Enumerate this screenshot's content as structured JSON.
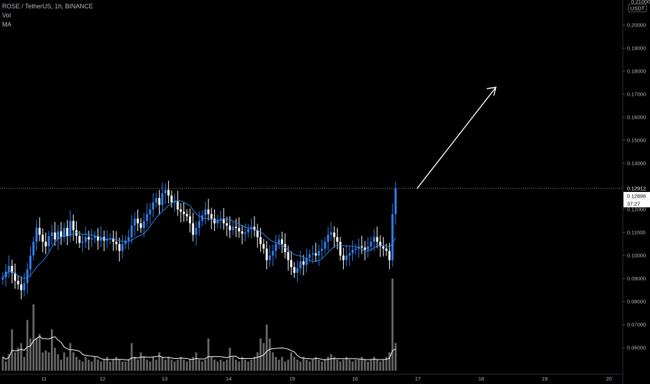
{
  "legend": {
    "symbol_line": "ROSE / TetherUS, 1h, BINANCE",
    "vol_label": "Vol",
    "ma_label": "MA"
  },
  "currency_label": "USDT",
  "colors": {
    "up": "#2f80ed",
    "down": "#ffffff",
    "volume": "#8a8a8a",
    "ma": "#2f80ed",
    "vol_ma": "#ffffff",
    "arrow": "#ffffff"
  },
  "chart_data": {
    "type": "candlestick",
    "symbol": "ROSE / TetherUS",
    "interval": "1h",
    "exchange": "BINANCE",
    "price_ticks": [
      0.21,
      0.2,
      0.19,
      0.18,
      0.17,
      0.16,
      0.15,
      0.14,
      0.13,
      0.12,
      0.11,
      0.1,
      0.09,
      0.08,
      0.07,
      0.06
    ],
    "price_tick_labels": [
      "0.21000",
      "0.20000",
      "0.19000",
      "0.18000",
      "0.17000",
      "0.16000",
      "0.15000",
      "0.14000",
      "0.13000",
      "0.12000",
      "0.11000",
      "0.10000",
      "0.09000",
      "0.08000",
      "0.07000",
      "0.06000"
    ],
    "x_tick_labels": [
      "11",
      "12",
      "13",
      "14",
      "15",
      "16",
      "17",
      "18",
      "19",
      "20"
    ],
    "last_price_label": "0.12912",
    "prev_price_label": "0.12896",
    "countdown_label": "37:27",
    "candles_close": [
      0.0905,
      0.093,
      0.0955,
      0.0925,
      0.089,
      0.0875,
      0.085,
      0.088,
      0.094,
      0.1,
      0.106,
      0.112,
      0.109,
      0.106,
      0.104,
      0.1085,
      0.11,
      0.107,
      0.1105,
      0.108,
      0.112,
      0.1085,
      0.115,
      0.111,
      0.1085,
      0.1055,
      0.106,
      0.108,
      0.107,
      0.1075,
      0.1085,
      0.1065,
      0.108,
      0.1065,
      0.107,
      0.1075,
      0.106,
      0.105,
      0.102,
      0.105,
      0.1065,
      0.108,
      0.113,
      0.116,
      0.114,
      0.112,
      0.115,
      0.118,
      0.12,
      0.123,
      0.125,
      0.122,
      0.127,
      0.1285,
      0.126,
      0.123,
      0.1235,
      0.12,
      0.119,
      0.118,
      0.117,
      0.114,
      0.109,
      0.112,
      0.115,
      0.1175,
      0.12,
      0.118,
      0.116,
      0.114,
      0.1155,
      0.116,
      0.114,
      0.113,
      0.111,
      0.1125,
      0.112,
      0.1105,
      0.1095,
      0.11,
      0.1115,
      0.1125,
      0.111,
      0.108,
      0.105,
      0.103,
      0.098,
      0.1,
      0.102,
      0.105,
      0.107,
      0.105,
      0.1015,
      0.098,
      0.095,
      0.0925,
      0.0945,
      0.0975,
      0.096,
      0.099,
      0.1005,
      0.101,
      0.1,
      0.102,
      0.103,
      0.106,
      0.109,
      0.11,
      0.108,
      0.106,
      0.1,
      0.098,
      0.1,
      0.101,
      0.1025,
      0.103,
      0.104,
      0.1035,
      0.1025,
      0.104,
      0.106,
      0.108,
      0.106,
      0.104,
      0.103,
      0.102,
      0.098,
      0.118,
      0.1291
    ],
    "volume_relative": [
      0.15,
      0.1,
      0.18,
      0.45,
      0.2,
      0.25,
      0.3,
      0.15,
      0.55,
      0.35,
      0.72,
      0.35,
      0.4,
      0.2,
      0.22,
      0.2,
      0.45,
      0.25,
      0.18,
      0.12,
      0.2,
      0.15,
      0.3,
      0.2,
      0.15,
      0.12,
      0.1,
      0.15,
      0.12,
      0.1,
      0.15,
      0.12,
      0.1,
      0.12,
      0.15,
      0.1,
      0.12,
      0.15,
      0.12,
      0.1,
      0.1,
      0.12,
      0.3,
      0.15,
      0.12,
      0.2,
      0.15,
      0.12,
      0.1,
      0.15,
      0.12,
      0.2,
      0.15,
      0.12,
      0.15,
      0.12,
      0.1,
      0.12,
      0.15,
      0.12,
      0.1,
      0.12,
      0.15,
      0.2,
      0.12,
      0.1,
      0.12,
      0.35,
      0.15,
      0.12,
      0.1,
      0.12,
      0.1,
      0.12,
      0.25,
      0.15,
      0.12,
      0.1,
      0.15,
      0.12,
      0.1,
      0.12,
      0.15,
      0.2,
      0.35,
      0.3,
      0.5,
      0.35,
      0.2,
      0.15,
      0.12,
      0.15,
      0.1,
      0.12,
      0.2,
      0.15,
      0.12,
      0.1,
      0.15,
      0.12,
      0.1,
      0.12,
      0.15,
      0.12,
      0.1,
      0.12,
      0.15,
      0.18,
      0.15,
      0.12,
      0.1,
      0.12,
      0.15,
      0.12,
      0.1,
      0.12,
      0.12,
      0.15,
      0.12,
      0.1,
      0.12,
      0.15,
      0.12,
      0.1,
      0.12,
      0.15,
      0.2,
      1.0,
      0.3
    ]
  }
}
